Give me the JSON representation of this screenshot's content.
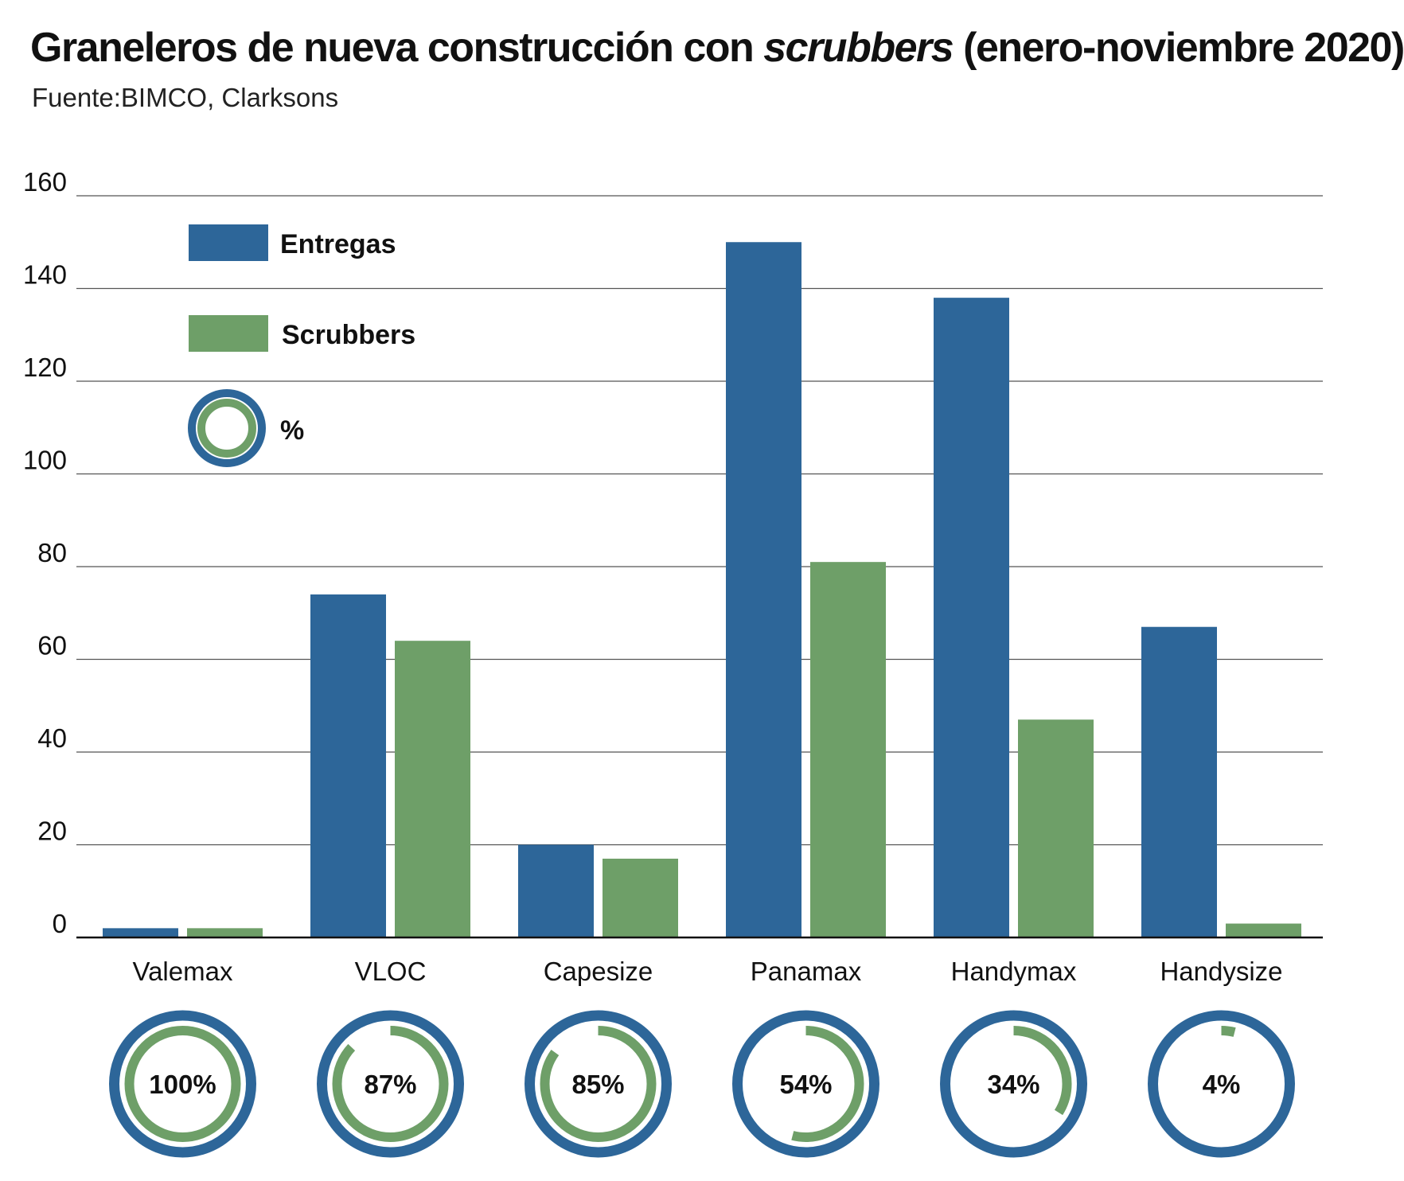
{
  "title_parts": {
    "pre": "Graneleros de nueva construcción con ",
    "italic": "scrubbers",
    "post": " (enero-noviembre 2020)"
  },
  "subtitle": "Fuente:BIMCO, Clarksons",
  "colors": {
    "entregas": "#2d6699",
    "scrubbers": "#6e9f68",
    "gridline": "#555555",
    "axis": "#111111"
  },
  "legend": {
    "entregas": "Entregas",
    "scrubbers": "Scrubbers",
    "percent": "%"
  },
  "chart_data": {
    "type": "bar",
    "title": "Graneleros de nueva construcción con scrubbers (enero-noviembre 2020)",
    "xlabel": "",
    "ylabel": "",
    "ylim": [
      0,
      160
    ],
    "yticks": [
      0,
      20,
      40,
      60,
      80,
      100,
      120,
      140,
      160
    ],
    "grid": true,
    "legend_position": "top-left",
    "categories": [
      "Valemax",
      "VLOC",
      "Capesize",
      "Panamax",
      "Handymax",
      "Handysize"
    ],
    "series": [
      {
        "name": "Entregas",
        "values": [
          2,
          74,
          20,
          150,
          138,
          67
        ]
      },
      {
        "name": "Scrubbers",
        "values": [
          2,
          64,
          17,
          81,
          47,
          3
        ]
      }
    ],
    "percentages": [
      100,
      87,
      85,
      54,
      34,
      4
    ],
    "percentage_labels": [
      "100%",
      "87%",
      "85%",
      "54%",
      "34%",
      "4%"
    ]
  }
}
